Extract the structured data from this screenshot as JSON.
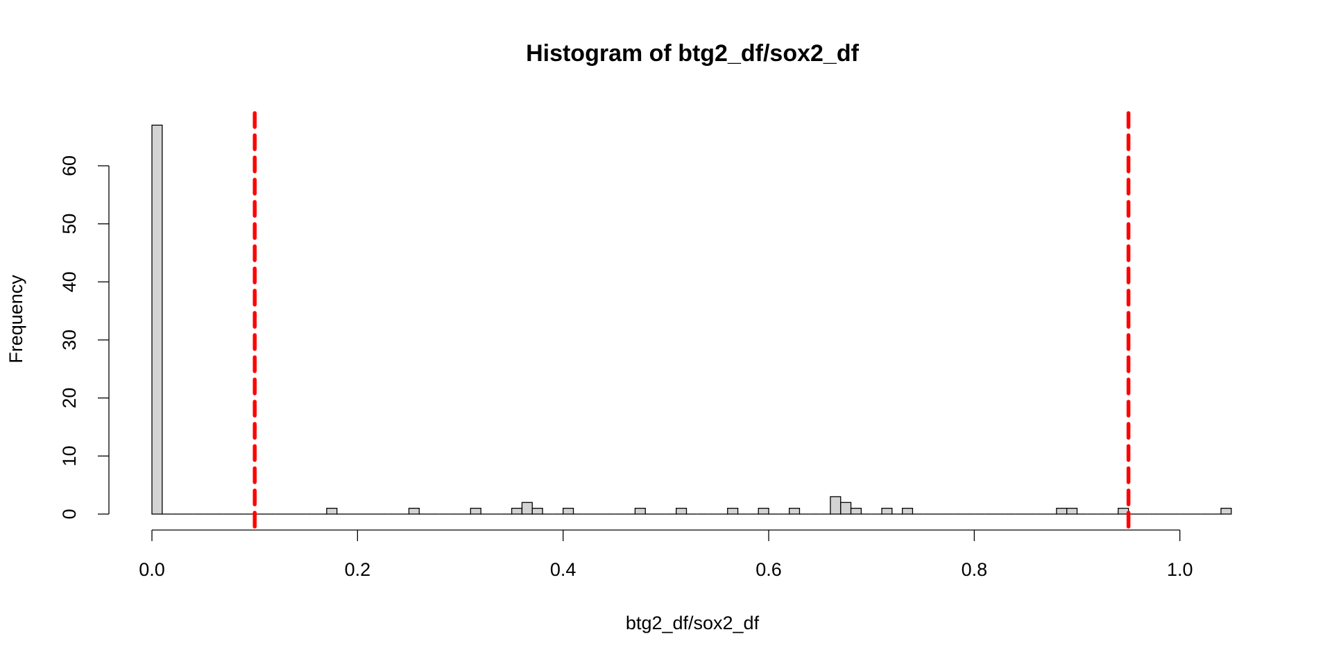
{
  "chart_data": {
    "type": "histogram",
    "title": "Histogram of btg2_df/sox2_df",
    "x_label": "btg2_df/sox2_df",
    "y_label": "Frequency",
    "bins": [
      0,
      0.01,
      0.02,
      0.03,
      0.04,
      0.05,
      0.06,
      0.07,
      0.08,
      0.09,
      0.1,
      0.11,
      0.12,
      0.13,
      0.14,
      0.15,
      0.16,
      0.17,
      0.18,
      0.19,
      0.2,
      0.21,
      0.22,
      0.23,
      0.24,
      0.25,
      0.26,
      0.27,
      0.28,
      0.29,
      0.3,
      0.31,
      0.32,
      0.33,
      0.34,
      0.35,
      0.36,
      0.37,
      0.38,
      0.39,
      0.4,
      0.41,
      0.42,
      0.43,
      0.44,
      0.45,
      0.46,
      0.47,
      0.48,
      0.49,
      0.5,
      0.51,
      0.52,
      0.53,
      0.54,
      0.55,
      0.56,
      0.57,
      0.58,
      0.59,
      0.6,
      0.61,
      0.62,
      0.63,
      0.64,
      0.65,
      0.66,
      0.67,
      0.68,
      0.69,
      0.7,
      0.71,
      0.72,
      0.73,
      0.74,
      0.75,
      0.76,
      0.77,
      0.78,
      0.79,
      0.8,
      0.81,
      0.82,
      0.83,
      0.84,
      0.85,
      0.86,
      0.87,
      0.88,
      0.89,
      0.9,
      0.91,
      0.92,
      0.93,
      0.94,
      0.95,
      0.96,
      0.97,
      0.98,
      0.99,
      1,
      1.01,
      1.02,
      1.03,
      1.04,
      1.05
    ],
    "values": [
      67,
      0,
      0,
      0,
      0,
      0,
      0,
      0,
      0,
      0,
      0,
      0,
      0,
      0,
      0,
      0,
      0,
      1,
      0,
      0,
      0,
      0,
      0,
      0,
      0,
      1,
      0,
      0,
      0,
      0,
      0,
      1,
      0,
      0,
      0,
      1,
      2,
      1,
      0,
      0,
      1,
      0,
      0,
      0,
      0,
      0,
      0,
      1,
      0,
      0,
      0,
      1,
      0,
      0,
      0,
      0,
      1,
      0,
      0,
      1,
      0,
      0,
      1,
      0,
      0,
      0,
      3,
      2,
      1,
      0,
      0,
      1,
      0,
      1,
      0,
      0,
      0,
      0,
      0,
      0,
      0,
      0,
      0,
      0,
      0,
      0,
      0,
      0,
      1,
      1,
      0,
      0,
      0,
      0,
      1,
      0,
      0,
      0,
      0,
      0,
      0,
      0,
      0,
      0,
      1
    ],
    "color": "#d3d3d3",
    "xlim": [
      0,
      1.05
    ],
    "ylim": [
      0,
      67
    ],
    "xticks": [
      {
        "value": 0,
        "label": "0.0"
      },
      0.2,
      0.4,
      0.6,
      0.8,
      {
        "value": 1,
        "label": "1.0"
      }
    ],
    "yticks": [
      0,
      10,
      20,
      30,
      40,
      50,
      60
    ],
    "vlines": [
      0.1,
      0.95
    ],
    "vline_color": "#ff0000"
  }
}
